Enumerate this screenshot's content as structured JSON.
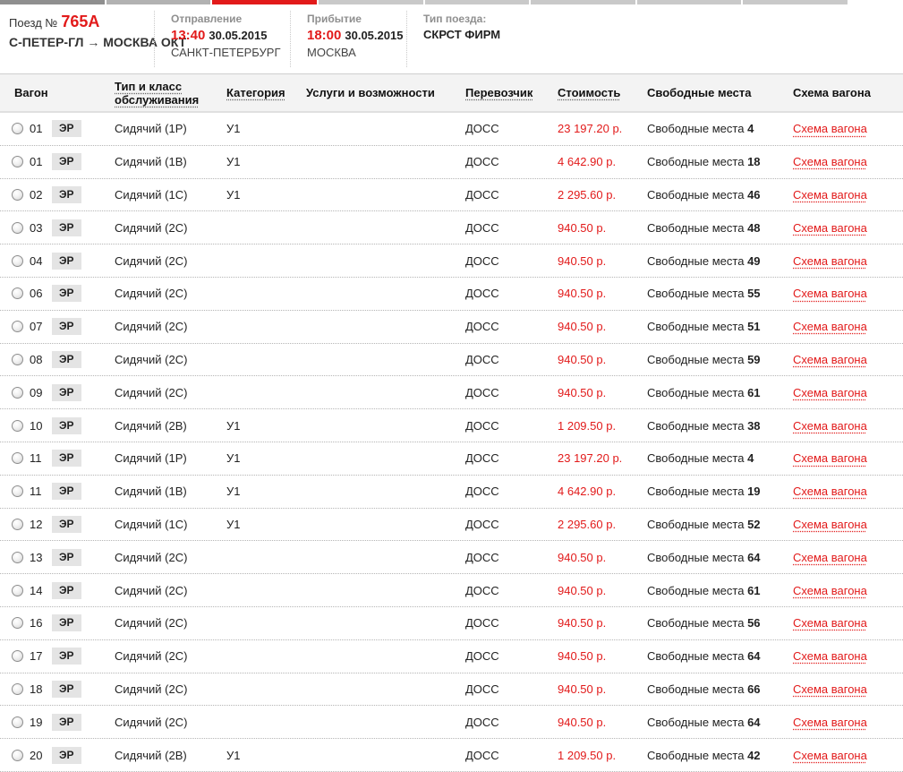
{
  "colors": {
    "accent_red": "#e21a1a",
    "progress_done": "#8f8f8f",
    "progress_prev": "#b2b2b2",
    "progress_current": "#e21a1a",
    "progress_todo": "#c9c9c9"
  },
  "progress": {
    "segments": [
      "#8f8f8f",
      "#b2b2b2",
      "#e21a1a",
      "#c9c9c9",
      "#c9c9c9",
      "#c9c9c9",
      "#c9c9c9",
      "#c9c9c9"
    ]
  },
  "header": {
    "train_label": "Поезд №",
    "train_number": "765А",
    "route": "С-ПЕТЕР-ГЛ → МОСКВА ОКТ",
    "departure": {
      "label": "Отправление",
      "time": "13:40",
      "date": "30.05.2015",
      "station": "САНКТ-ПЕТЕРБУРГ"
    },
    "arrival": {
      "label": "Прибытие",
      "time": "18:00",
      "date": "30.05.2015",
      "station": "МОСКВА"
    },
    "train_type": {
      "label": "Тип поезда:",
      "value": "СКРСТ ФИРМ"
    }
  },
  "table": {
    "columns": {
      "wagon": "Вагон",
      "type_class": "Тип и класс обслуживания",
      "category": "Категория",
      "services": "Услуги и возможности",
      "carrier": "Перевозчик",
      "price": "Стоимость",
      "seats": "Свободные места",
      "scheme": "Схема вагона"
    },
    "seats_label": "Свободные места",
    "scheme_link": "Схема вагона",
    "rows": [
      {
        "wagon": "01",
        "badge": "ЭР",
        "type": "Сидячий (1Р)",
        "category": "У1",
        "services": "",
        "carrier": "ДОСС",
        "price": "23 197.20 р.",
        "seats": "4"
      },
      {
        "wagon": "01",
        "badge": "ЭР",
        "type": "Сидячий (1В)",
        "category": "У1",
        "services": "",
        "carrier": "ДОСС",
        "price": "4 642.90 р.",
        "seats": "18"
      },
      {
        "wagon": "02",
        "badge": "ЭР",
        "type": "Сидячий (1С)",
        "category": "У1",
        "services": "",
        "carrier": "ДОСС",
        "price": "2 295.60 р.",
        "seats": "46"
      },
      {
        "wagon": "03",
        "badge": "ЭР",
        "type": "Сидячий (2С)",
        "category": "",
        "services": "",
        "carrier": "ДОСС",
        "price": "940.50 р.",
        "seats": "48"
      },
      {
        "wagon": "04",
        "badge": "ЭР",
        "type": "Сидячий (2С)",
        "category": "",
        "services": "",
        "carrier": "ДОСС",
        "price": "940.50 р.",
        "seats": "49"
      },
      {
        "wagon": "06",
        "badge": "ЭР",
        "type": "Сидячий (2С)",
        "category": "",
        "services": "",
        "carrier": "ДОСС",
        "price": "940.50 р.",
        "seats": "55"
      },
      {
        "wagon": "07",
        "badge": "ЭР",
        "type": "Сидячий (2С)",
        "category": "",
        "services": "",
        "carrier": "ДОСС",
        "price": "940.50 р.",
        "seats": "51"
      },
      {
        "wagon": "08",
        "badge": "ЭР",
        "type": "Сидячий (2С)",
        "category": "",
        "services": "",
        "carrier": "ДОСС",
        "price": "940.50 р.",
        "seats": "59"
      },
      {
        "wagon": "09",
        "badge": "ЭР",
        "type": "Сидячий (2С)",
        "category": "",
        "services": "",
        "carrier": "ДОСС",
        "price": "940.50 р.",
        "seats": "61"
      },
      {
        "wagon": "10",
        "badge": "ЭР",
        "type": "Сидячий (2В)",
        "category": "У1",
        "services": "",
        "carrier": "ДОСС",
        "price": "1 209.50 р.",
        "seats": "38"
      },
      {
        "wagon": "11",
        "badge": "ЭР",
        "type": "Сидячий (1Р)",
        "category": "У1",
        "services": "",
        "carrier": "ДОСС",
        "price": "23 197.20 р.",
        "seats": "4"
      },
      {
        "wagon": "11",
        "badge": "ЭР",
        "type": "Сидячий (1В)",
        "category": "У1",
        "services": "",
        "carrier": "ДОСС",
        "price": "4 642.90 р.",
        "seats": "19"
      },
      {
        "wagon": "12",
        "badge": "ЭР",
        "type": "Сидячий (1С)",
        "category": "У1",
        "services": "",
        "carrier": "ДОСС",
        "price": "2 295.60 р.",
        "seats": "52"
      },
      {
        "wagon": "13",
        "badge": "ЭР",
        "type": "Сидячий (2С)",
        "category": "",
        "services": "",
        "carrier": "ДОСС",
        "price": "940.50 р.",
        "seats": "64"
      },
      {
        "wagon": "14",
        "badge": "ЭР",
        "type": "Сидячий (2С)",
        "category": "",
        "services": "",
        "carrier": "ДОСС",
        "price": "940.50 р.",
        "seats": "61"
      },
      {
        "wagon": "16",
        "badge": "ЭР",
        "type": "Сидячий (2С)",
        "category": "",
        "services": "",
        "carrier": "ДОСС",
        "price": "940.50 р.",
        "seats": "56"
      },
      {
        "wagon": "17",
        "badge": "ЭР",
        "type": "Сидячий (2С)",
        "category": "",
        "services": "",
        "carrier": "ДОСС",
        "price": "940.50 р.",
        "seats": "64"
      },
      {
        "wagon": "18",
        "badge": "ЭР",
        "type": "Сидячий (2С)",
        "category": "",
        "services": "",
        "carrier": "ДОСС",
        "price": "940.50 р.",
        "seats": "66"
      },
      {
        "wagon": "19",
        "badge": "ЭР",
        "type": "Сидячий (2С)",
        "category": "",
        "services": "",
        "carrier": "ДОСС",
        "price": "940.50 р.",
        "seats": "64"
      },
      {
        "wagon": "20",
        "badge": "ЭР",
        "type": "Сидячий (2В)",
        "category": "У1",
        "services": "",
        "carrier": "ДОСС",
        "price": "1 209.50 р.",
        "seats": "42"
      }
    ]
  }
}
